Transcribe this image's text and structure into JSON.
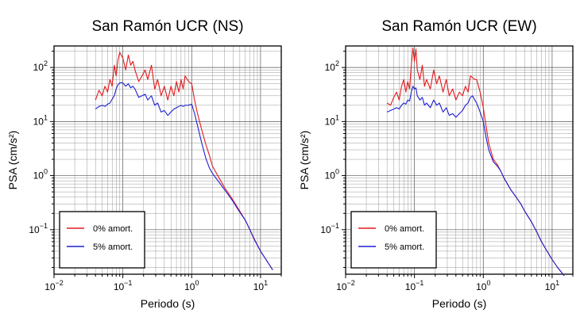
{
  "chart_data": [
    {
      "type": "line",
      "title": "San Ramón UCR (NS)",
      "xlabel": "Periodo (s)",
      "ylabel": "PSA (cm/s²)",
      "xscale": "log",
      "yscale": "log",
      "xlim": [
        0.01,
        20
      ],
      "ylim": [
        0.015,
        250
      ],
      "grid": true,
      "legend_position": "bottom-left",
      "xticks": [
        {
          "value": 0.01,
          "base": "10",
          "exp": "−2"
        },
        {
          "value": 0.1,
          "base": "10",
          "exp": "−1"
        },
        {
          "value": 1,
          "base": "10",
          "exp": "0"
        },
        {
          "value": 10,
          "base": "10",
          "exp": "1"
        }
      ],
      "yticks": [
        {
          "value": 0.1,
          "base": "10",
          "exp": "−1"
        },
        {
          "value": 1,
          "base": "10",
          "exp": "0"
        },
        {
          "value": 10,
          "base": "10",
          "exp": "1"
        },
        {
          "value": 100,
          "base": "10",
          "exp": "2"
        }
      ],
      "series": [
        {
          "name": "0% amort.",
          "color": "#e41a1c",
          "x": [
            0.04,
            0.045,
            0.05,
            0.055,
            0.06,
            0.065,
            0.07,
            0.075,
            0.08,
            0.085,
            0.09,
            0.1,
            0.11,
            0.12,
            0.13,
            0.14,
            0.15,
            0.17,
            0.19,
            0.21,
            0.23,
            0.26,
            0.29,
            0.32,
            0.36,
            0.4,
            0.45,
            0.5,
            0.55,
            0.6,
            0.65,
            0.7,
            0.75,
            0.8,
            0.9,
            1.0,
            1.1,
            1.2,
            1.4,
            1.6,
            1.8,
            2.0,
            2.5,
            3.0,
            3.5,
            4.0,
            5.0,
            6.0,
            7.0,
            8.0,
            10.0,
            12.0,
            15.0
          ],
          "y": [
            25,
            38,
            30,
            45,
            35,
            60,
            45,
            110,
            70,
            140,
            190,
            150,
            90,
            170,
            110,
            130,
            90,
            55,
            70,
            90,
            60,
            110,
            40,
            60,
            30,
            45,
            25,
            45,
            30,
            55,
            35,
            60,
            40,
            70,
            55,
            50,
            25,
            15,
            7,
            3.8,
            2.4,
            1.5,
            0.9,
            0.6,
            0.45,
            0.35,
            0.22,
            0.15,
            0.1,
            0.07,
            0.04,
            0.028,
            0.018
          ]
        },
        {
          "name": "5% amort.",
          "color": "#1f1fd4",
          "x": [
            0.04,
            0.045,
            0.05,
            0.055,
            0.06,
            0.065,
            0.07,
            0.075,
            0.08,
            0.085,
            0.09,
            0.1,
            0.11,
            0.12,
            0.13,
            0.14,
            0.15,
            0.17,
            0.19,
            0.21,
            0.23,
            0.26,
            0.29,
            0.32,
            0.36,
            0.4,
            0.45,
            0.5,
            0.55,
            0.6,
            0.65,
            0.7,
            0.75,
            0.8,
            0.9,
            1.0,
            1.1,
            1.2,
            1.4,
            1.6,
            1.8,
            2.0,
            2.5,
            3.0,
            3.5,
            4.0,
            5.0,
            6.0,
            7.0,
            8.0,
            10.0,
            12.0,
            15.0
          ],
          "y": [
            17,
            19,
            20,
            19,
            21,
            22,
            26,
            30,
            40,
            48,
            52,
            52,
            45,
            50,
            42,
            45,
            40,
            28,
            30,
            32,
            25,
            30,
            20,
            22,
            15,
            16,
            13,
            15,
            17,
            18,
            19,
            20,
            19,
            20,
            20,
            21,
            14,
            9,
            4,
            2.1,
            1.4,
            1.1,
            0.75,
            0.55,
            0.42,
            0.33,
            0.21,
            0.15,
            0.1,
            0.068,
            0.04,
            0.028,
            0.018
          ]
        }
      ]
    },
    {
      "type": "line",
      "title": "San Ramón UCR (EW)",
      "xlabel": "Periodo (s)",
      "ylabel": "PSA (cm/s²)",
      "xscale": "log",
      "yscale": "log",
      "xlim": [
        0.01,
        20
      ],
      "ylim": [
        0.015,
        250
      ],
      "grid": true,
      "legend_position": "bottom-left",
      "xticks": [
        {
          "value": 0.01,
          "base": "10",
          "exp": "−2"
        },
        {
          "value": 0.1,
          "base": "10",
          "exp": "−1"
        },
        {
          "value": 1,
          "base": "10",
          "exp": "0"
        },
        {
          "value": 10,
          "base": "10",
          "exp": "1"
        }
      ],
      "yticks": [
        {
          "value": 0.1,
          "base": "10",
          "exp": "−1"
        },
        {
          "value": 1,
          "base": "10",
          "exp": "0"
        },
        {
          "value": 10,
          "base": "10",
          "exp": "1"
        },
        {
          "value": 100,
          "base": "10",
          "exp": "2"
        }
      ],
      "series": [
        {
          "name": "0% amort.",
          "color": "#e41a1c",
          "x": [
            0.04,
            0.045,
            0.05,
            0.055,
            0.06,
            0.065,
            0.07,
            0.075,
            0.08,
            0.085,
            0.09,
            0.095,
            0.1,
            0.105,
            0.11,
            0.12,
            0.13,
            0.14,
            0.15,
            0.17,
            0.19,
            0.21,
            0.23,
            0.26,
            0.29,
            0.32,
            0.36,
            0.4,
            0.45,
            0.5,
            0.55,
            0.6,
            0.65,
            0.7,
            0.75,
            0.8,
            0.9,
            1.0,
            1.1,
            1.2,
            1.4,
            1.6,
            1.8,
            2.0,
            2.5,
            3.0,
            3.5,
            4.0,
            5.0,
            6.0,
            7.0,
            8.0,
            10.0,
            12.0,
            15.0
          ],
          "y": [
            22,
            20,
            28,
            35,
            25,
            45,
            60,
            35,
            55,
            40,
            110,
            230,
            130,
            220,
            90,
            60,
            110,
            45,
            60,
            40,
            90,
            50,
            70,
            35,
            60,
            30,
            40,
            25,
            35,
            30,
            45,
            35,
            70,
            65,
            60,
            60,
            35,
            18,
            8,
            4,
            2,
            1.6,
            1.2,
            0.9,
            0.55,
            0.4,
            0.3,
            0.22,
            0.14,
            0.09,
            0.06,
            0.045,
            0.028,
            0.02,
            0.014
          ]
        },
        {
          "name": "5% amort.",
          "color": "#1f1fd4",
          "x": [
            0.04,
            0.045,
            0.05,
            0.055,
            0.06,
            0.065,
            0.07,
            0.075,
            0.08,
            0.085,
            0.09,
            0.095,
            0.1,
            0.105,
            0.11,
            0.12,
            0.13,
            0.14,
            0.15,
            0.17,
            0.19,
            0.21,
            0.23,
            0.26,
            0.29,
            0.32,
            0.36,
            0.4,
            0.45,
            0.5,
            0.55,
            0.6,
            0.65,
            0.7,
            0.75,
            0.8,
            0.9,
            1.0,
            1.1,
            1.2,
            1.4,
            1.6,
            1.8,
            2.0,
            2.5,
            3.0,
            3.5,
            4.0,
            5.0,
            6.0,
            7.0,
            8.0,
            10.0,
            12.0,
            15.0
          ],
          "y": [
            15,
            16,
            17,
            18,
            17,
            20,
            22,
            21,
            25,
            24,
            35,
            45,
            40,
            42,
            30,
            25,
            28,
            20,
            22,
            18,
            25,
            20,
            22,
            15,
            18,
            13,
            14,
            12,
            14,
            16,
            20,
            22,
            28,
            30,
            25,
            22,
            15,
            10,
            5,
            3,
            1.8,
            1.5,
            1.2,
            0.9,
            0.55,
            0.4,
            0.3,
            0.22,
            0.14,
            0.09,
            0.06,
            0.045,
            0.028,
            0.02,
            0.014
          ]
        }
      ]
    }
  ]
}
